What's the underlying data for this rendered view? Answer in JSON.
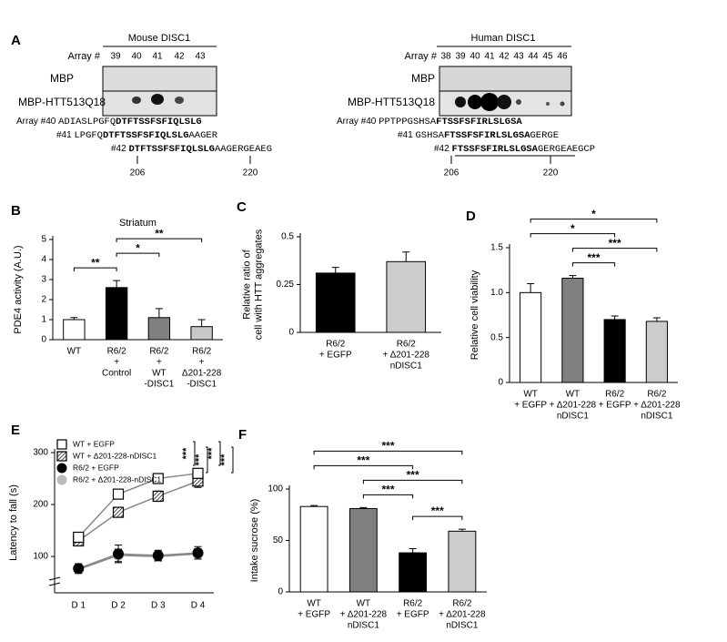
{
  "panel_a": {
    "label": "A",
    "mouse": {
      "title": "Mouse DISC1",
      "array_label": "Array #",
      "arrays": [
        39,
        40,
        41,
        42,
        43
      ],
      "rows": [
        "MBP",
        "MBP-HTT513Q18"
      ],
      "sequences": [
        {
          "label": "Array #40",
          "prefix": "ADIASLPGFQ",
          "bold": "DTFTSSFSFIQLSLG"
        },
        {
          "label": "#41",
          "prefix": "LPGFQ",
          "bold": "DTFTSSFSFIQLSLG",
          "suffix": "AAGER"
        },
        {
          "label": "#42",
          "bold": "DTFTSSFSFIQLSLG",
          "suffix": "AAGERGEAEG"
        }
      ],
      "positions": [
        206,
        220
      ]
    },
    "human": {
      "title": "Human DISC1",
      "array_label": "Array #",
      "arrays": [
        38,
        39,
        40,
        41,
        42,
        43,
        44,
        45,
        46
      ],
      "rows": [
        "MBP",
        "MBP-HTT513Q18"
      ],
      "sequences": [
        {
          "label": "Array #40",
          "prefix": "PPTPPGSHSA",
          "bold": "FTSSFSFIRLSLGSA"
        },
        {
          "label": "#41",
          "prefix": "GSHSA",
          "bold": "FTSSFSFIRLSLGSA",
          "suffix": "GERGE"
        },
        {
          "label": "#42",
          "bold": "FTSSFSFIRLSLGSA",
          "suffix": "GERGEAEGCP"
        }
      ],
      "positions": [
        206,
        220
      ]
    }
  },
  "chart_data": [
    {
      "panel": "B",
      "type": "bar",
      "title": "Striatum",
      "y_label": "PDE4 activity (A.U.)",
      "categories": [
        [
          "WT"
        ],
        [
          "R6/2",
          "+",
          "Control"
        ],
        [
          "R6/2",
          "+",
          "WT",
          "-DISC1"
        ],
        [
          "R6/2",
          "+",
          "Δ201-228",
          "-DISC1"
        ]
      ],
      "values": [
        1.0,
        2.6,
        1.1,
        0.65
      ],
      "errors": [
        0.1,
        0.35,
        0.45,
        0.35
      ],
      "colors": [
        "#ffffff",
        "#000000",
        "#808080",
        "#c8c8c8"
      ],
      "ylim": [
        0,
        5
      ],
      "yticks": [
        0,
        1,
        2,
        3,
        4,
        5
      ],
      "significance": [
        {
          "from": 0,
          "to": 1,
          "label": "**"
        },
        {
          "from": 1,
          "to": 2,
          "label": "*"
        },
        {
          "from": 1,
          "to": 3,
          "label": "**"
        }
      ]
    },
    {
      "panel": "C",
      "type": "bar",
      "y_label": [
        "Relative ratio of",
        "cell with HTT aggregates"
      ],
      "categories": [
        [
          "R6/2",
          "+ EGFP"
        ],
        [
          "R6/2",
          "+ Δ201-228",
          "nDISC1"
        ]
      ],
      "values": [
        0.31,
        0.37
      ],
      "errors": [
        0.03,
        0.05
      ],
      "colors": [
        "#000000",
        "#cccccc"
      ],
      "ylim": [
        0,
        0.5
      ],
      "yticks": [
        0,
        0.25,
        0.5
      ]
    },
    {
      "panel": "D",
      "type": "bar",
      "y_label": "Relative cell viability",
      "categories": [
        [
          "WT",
          "+ EGFP"
        ],
        [
          "WT",
          "+ Δ201-228",
          "nDISC1"
        ],
        [
          "R6/2",
          "+ EGFP"
        ],
        [
          "R6/2",
          "+ Δ201-228",
          "nDISC1"
        ]
      ],
      "values": [
        1.0,
        1.16,
        0.7,
        0.68
      ],
      "errors": [
        0.1,
        0.03,
        0.04,
        0.04
      ],
      "colors": [
        "#ffffff",
        "#808080",
        "#000000",
        "#cccccc"
      ],
      "ylim": [
        0,
        1.5
      ],
      "yticks": [
        0,
        0.5,
        {
          "value": 1,
          "label": "1.0"
        },
        1.5
      ],
      "significance": [
        {
          "from": 1,
          "to": 2,
          "label": "***"
        },
        {
          "from": 1,
          "to": 3,
          "label": "***"
        },
        {
          "from": 0,
          "to": 2,
          "label": "*"
        },
        {
          "from": 0,
          "to": 3,
          "label": "*"
        }
      ]
    },
    {
      "panel": "E",
      "type": "line",
      "y_label": "Latency to fall (s)",
      "x": [
        "D 1",
        "D 2",
        "D 3",
        "D 4"
      ],
      "line_color": "#888888",
      "series": [
        {
          "name": "WT + EGFP",
          "color": "#000000",
          "marker": "square",
          "fill": "none",
          "values": [
            137,
            220,
            250,
            260
          ],
          "errors": [
            9,
            9,
            9,
            9
          ]
        },
        {
          "name": "WT + Δ201-228-nDISC1",
          "color": "#000000",
          "marker": "square",
          "fill": "hatched",
          "values": [
            130,
            185,
            216,
            245
          ],
          "errors": [
            8,
            9,
            10,
            12
          ]
        },
        {
          "name": "R6/2 + EGFP",
          "color": "#000000",
          "marker": "circle",
          "fill": "solid",
          "values": [
            77,
            105,
            102,
            107
          ],
          "errors": [
            9,
            17,
            10,
            12
          ]
        },
        {
          "name": "R6/2 + Δ201-228-nDISC1",
          "color": "#bbbbbb",
          "marker": "circle",
          "fill": "solid",
          "values": [
            75,
            102,
            100,
            105
          ],
          "errors": [
            8,
            12,
            9,
            10
          ]
        }
      ],
      "ylim": [
        30,
        300
      ],
      "yticks": [
        100,
        200,
        300
      ],
      "significance": [
        "***",
        "***",
        "***",
        "***"
      ]
    },
    {
      "panel": "F",
      "type": "bar",
      "y_label": "Intake sucrose (%)",
      "categories": [
        [
          "WT",
          "+ EGFP"
        ],
        [
          "WT",
          "+ Δ201-228",
          "nDISC1"
        ],
        [
          "R6/2",
          "+ EGFP"
        ],
        [
          "R6/2",
          "+ Δ201-228",
          "nDISC1"
        ]
      ],
      "values": [
        83,
        81,
        38,
        59
      ],
      "errors": [
        1,
        1,
        4,
        2
      ],
      "colors": [
        "#ffffff",
        "#808080",
        "#000000",
        "#cccccc"
      ],
      "ylim": [
        0,
        100
      ],
      "yticks": [
        0,
        50,
        100
      ],
      "significance": [
        {
          "from": 2,
          "to": 3,
          "label": "***"
        },
        {
          "from": 1,
          "to": 2,
          "label": "***"
        },
        {
          "from": 1,
          "to": 3,
          "label": "***"
        },
        {
          "from": 0,
          "to": 2,
          "label": "***"
        },
        {
          "from": 0,
          "to": 3,
          "label": "***"
        }
      ]
    }
  ]
}
